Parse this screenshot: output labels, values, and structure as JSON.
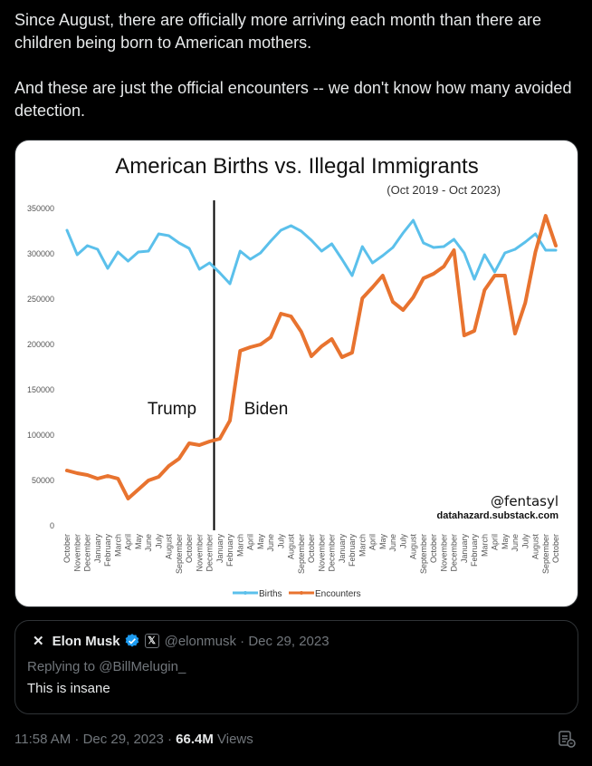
{
  "tweet": {
    "text_p1": "Since August, there are officially more arriving each month than there are children being born to American mothers.",
    "text_p2": "And these are just the official encounters -- we don't know how many avoided detection."
  },
  "chart_data": {
    "type": "line",
    "title": "American Births vs. Illegal Immigrants",
    "subtitle": "(Oct 2019 - Oct 2023)",
    "xlabel": "",
    "ylabel": "",
    "ylim": [
      0,
      350000
    ],
    "yticks": [
      "0",
      "50000",
      "100000",
      "150000",
      "200000",
      "250000",
      "300000",
      "350000"
    ],
    "grid": false,
    "legend_position": "bottom",
    "annotations": {
      "left_label": "Trump",
      "right_label": "Biden",
      "watermark": "@fentasyl",
      "source": "datahazard.substack.com"
    },
    "categories": [
      "October",
      "November",
      "December",
      "January",
      "February",
      "March",
      "April",
      "May",
      "June",
      "July",
      "August",
      "September",
      "October",
      "November",
      "December",
      "January",
      "February",
      "March",
      "April",
      "May",
      "June",
      "July",
      "August",
      "September",
      "October",
      "November",
      "December",
      "January",
      "February",
      "March",
      "April",
      "May",
      "June",
      "July",
      "August",
      "September",
      "October",
      "November",
      "December",
      "January",
      "February",
      "March",
      "April",
      "May",
      "June",
      "July",
      "August",
      "September",
      "October"
    ],
    "series": [
      {
        "name": "Births",
        "color": "#5bc0eb",
        "values": [
          326000,
          299000,
          309000,
          305000,
          284000,
          302000,
          292000,
          302000,
          303000,
          322000,
          320000,
          312000,
          306000,
          283000,
          290000,
          279000,
          267000,
          303000,
          294000,
          301000,
          314000,
          326000,
          331000,
          325000,
          315000,
          303000,
          311000,
          294000,
          276000,
          308000,
          290000,
          298000,
          307000,
          323000,
          337000,
          312000,
          307000,
          308000,
          316000,
          301000,
          272000,
          299000,
          280000,
          301000,
          305000,
          313000,
          322000,
          304000,
          304000
        ]
      },
      {
        "name": "Encounters",
        "color": "#e8732f",
        "values": [
          61000,
          58000,
          56000,
          52000,
          55000,
          52000,
          30000,
          40000,
          50000,
          54000,
          66000,
          74000,
          91000,
          89000,
          93000,
          96000,
          116000,
          193000,
          197000,
          200000,
          208000,
          234000,
          231000,
          214000,
          187000,
          198000,
          206000,
          186000,
          191000,
          251000,
          263000,
          276000,
          247000,
          238000,
          252000,
          273000,
          278000,
          286000,
          304000,
          210000,
          215000,
          260000,
          276000,
          276000,
          212000,
          246000,
          302000,
          342000,
          309000
        ]
      }
    ]
  },
  "quote": {
    "name": "Elon Musk",
    "x_badge": "𝕏",
    "handle_date": "@elonmusk · Dec 29, 2023",
    "replying_to": "Replying to @BillMelugin_",
    "body": "This is insane"
  },
  "meta": {
    "time_date": "11:58 AM · Dec 29, 2023 · ",
    "views_count": "66.4M",
    "views_label": " Views"
  }
}
